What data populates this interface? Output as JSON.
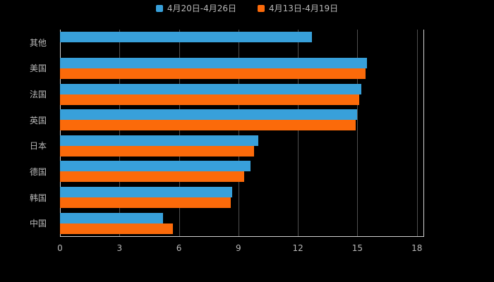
{
  "legend": [
    {
      "label": "4月20日-4月26日",
      "color": "#38a0da"
    },
    {
      "label": "4月13日-4月19日",
      "color": "#fb6a0a"
    }
  ],
  "colors": {
    "background": "#000000",
    "text": "#b9b9b9",
    "grid": "#4f4f4f",
    "axis": "#d0d0d0"
  },
  "chart_data": {
    "type": "bar",
    "orientation": "horizontal",
    "title": "",
    "xlabel": "",
    "ylabel": "",
    "categories": [
      "其他",
      "美国",
      "法国",
      "英国",
      "日本",
      "德国",
      "韩国",
      "中国"
    ],
    "series": [
      {
        "name": "4月20日-4月26日",
        "color": "#38a0da",
        "values": [
          12.7,
          15.5,
          15.2,
          15.0,
          10.0,
          9.6,
          8.7,
          5.2
        ]
      },
      {
        "name": "4月13日-4月19日",
        "color": "#fb6a0a",
        "values": [
          null,
          15.4,
          15.1,
          14.9,
          9.8,
          9.3,
          8.6,
          5.7
        ]
      }
    ],
    "xticks": [
      0,
      3,
      6,
      9,
      12,
      15,
      18
    ],
    "xmax": 18.33,
    "grid": true,
    "legend_position": "top"
  }
}
